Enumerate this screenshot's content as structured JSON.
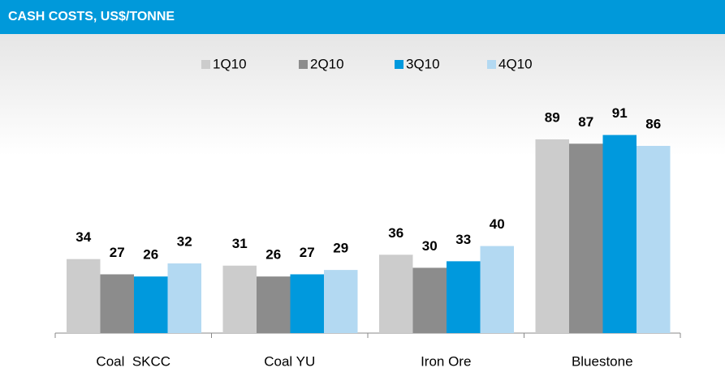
{
  "chart_data": {
    "type": "bar",
    "title": "CASH COSTS, US$/TONNE",
    "categories": [
      "Coal  SKCC",
      "Coal YU",
      "Iron Ore",
      "Bluestone"
    ],
    "series": [
      {
        "name": "1Q10",
        "color": "#cccccc",
        "values": [
          34,
          31,
          36,
          89
        ]
      },
      {
        "name": "2Q10",
        "color": "#8c8c8c",
        "values": [
          27,
          26,
          30,
          87
        ]
      },
      {
        "name": "3Q10",
        "color": "#0099dd",
        "values": [
          26,
          27,
          33,
          91
        ]
      },
      {
        "name": "4Q10",
        "color": "#b3d9f2",
        "values": [
          32,
          29,
          40,
          86
        ]
      }
    ],
    "legend": "top"
  }
}
